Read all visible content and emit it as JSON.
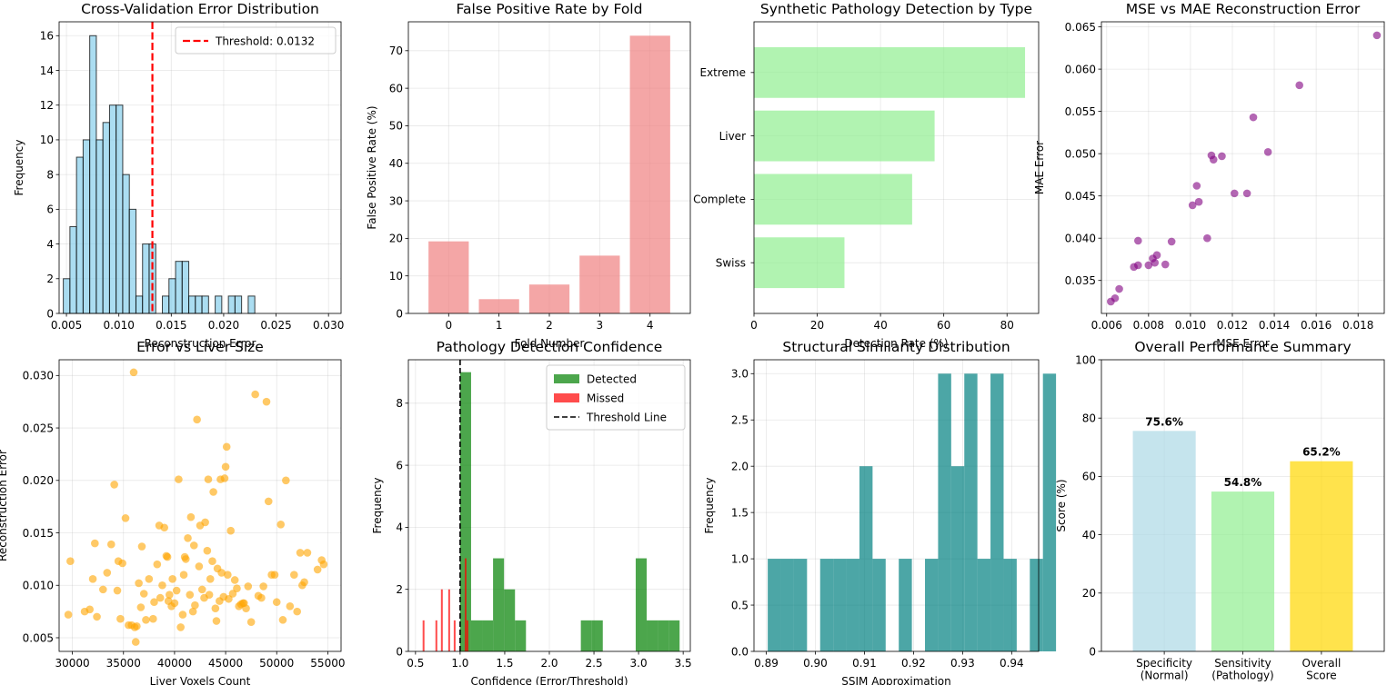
{
  "chart_data": [
    {
      "type": "histogram",
      "title": "Cross-Validation Error Distribution",
      "xlabel": "Reconstruction Error",
      "ylabel": "Frequency",
      "xlim": [
        0.0043,
        0.0312
      ],
      "ylim": [
        0,
        16.8
      ],
      "xticks": [
        0.005,
        0.01,
        0.015,
        0.02,
        0.025,
        0.03
      ],
      "yticks": [
        0,
        2,
        4,
        6,
        8,
        10,
        12,
        14,
        16
      ],
      "bin_start": 0.0047,
      "bin_width": 0.00063,
      "counts": [
        2,
        5,
        9,
        10,
        16,
        10,
        11,
        12,
        12,
        8,
        6,
        1,
        4,
        4,
        0,
        1,
        2,
        3,
        3,
        1,
        1,
        1,
        0,
        1,
        0,
        1,
        1,
        0,
        1
      ],
      "color": "#87ceeb",
      "threshold": {
        "value": 0.0132,
        "label": "Threshold: 0.0132",
        "color": "#ff0000"
      },
      "legend": "top-right",
      "grid": true
    },
    {
      "type": "bar",
      "title": "False Positive Rate by Fold",
      "xlabel": "Fold Number",
      "ylabel": "False Positive Rate (%)",
      "categories": [
        "0",
        "1",
        "2",
        "3",
        "4"
      ],
      "values": [
        19.2,
        3.8,
        7.7,
        15.4,
        74.0
      ],
      "ylim": [
        0,
        77.7
      ],
      "yticks": [
        0,
        10,
        20,
        30,
        40,
        50,
        60,
        70
      ],
      "color": "#f08080",
      "grid": true
    },
    {
      "type": "barh",
      "title": "Synthetic Pathology Detection by Type",
      "xlabel": "Detection Rate (%)",
      "ylabel": "",
      "categories": [
        "Swiss",
        "Complete",
        "Liver",
        "Extreme"
      ],
      "values": [
        28.6,
        50.0,
        57.1,
        85.7
      ],
      "xlim": [
        0,
        90
      ],
      "xticks": [
        0,
        20,
        40,
        60,
        80
      ],
      "color": "#90ee90",
      "grid": true
    },
    {
      "type": "scatter",
      "title": "MSE vs MAE Reconstruction Error",
      "xlabel": "MSE Error",
      "ylabel": "MAE Error",
      "xlim": [
        0.00575,
        0.01925
      ],
      "ylim": [
        0.0311,
        0.0656
      ],
      "xticks": [
        0.006,
        0.008,
        0.01,
        0.012,
        0.014,
        0.016,
        0.018
      ],
      "yticks": [
        0.035,
        0.04,
        0.045,
        0.05,
        0.055,
        0.06,
        0.065
      ],
      "color": "#800080",
      "points": [
        [
          0.0062,
          0.0325
        ],
        [
          0.0064,
          0.0329
        ],
        [
          0.0066,
          0.034
        ],
        [
          0.0073,
          0.0366
        ],
        [
          0.0075,
          0.0368
        ],
        [
          0.0075,
          0.0397
        ],
        [
          0.008,
          0.0368
        ],
        [
          0.0082,
          0.0376
        ],
        [
          0.0083,
          0.0371
        ],
        [
          0.0084,
          0.038
        ],
        [
          0.0088,
          0.0369
        ],
        [
          0.0091,
          0.0396
        ],
        [
          0.0101,
          0.0439
        ],
        [
          0.0103,
          0.0462
        ],
        [
          0.0104,
          0.0443
        ],
        [
          0.0108,
          0.04
        ],
        [
          0.011,
          0.0498
        ],
        [
          0.0111,
          0.0493
        ],
        [
          0.0115,
          0.0497
        ],
        [
          0.0121,
          0.0453
        ],
        [
          0.0127,
          0.0453
        ],
        [
          0.013,
          0.0543
        ],
        [
          0.0137,
          0.0502
        ],
        [
          0.0152,
          0.0581
        ],
        [
          0.0189,
          0.064
        ]
      ],
      "grid": true
    },
    {
      "type": "scatter",
      "title": "Error vs Liver Size",
      "xlabel": "Liver Voxels Count",
      "ylabel": "Reconstruction Error",
      "xlim": [
        28700,
        56300
      ],
      "ylim": [
        0.0037,
        0.0315
      ],
      "xticks": [
        30000,
        35000,
        40000,
        45000,
        50000,
        55000
      ],
      "yticks": [
        0.005,
        0.01,
        0.015,
        0.02,
        0.025,
        0.03
      ],
      "color": "#ffa500",
      "points": [
        [
          29600,
          0.0072
        ],
        [
          29800,
          0.0123
        ],
        [
          31200,
          0.0075
        ],
        [
          31700,
          0.0077
        ],
        [
          32000,
          0.0106
        ],
        [
          32200,
          0.014
        ],
        [
          32400,
          0.007
        ],
        [
          33000,
          0.0096
        ],
        [
          33400,
          0.0112
        ],
        [
          33800,
          0.0139
        ],
        [
          34100,
          0.0196
        ],
        [
          34400,
          0.0095
        ],
        [
          34500,
          0.0123
        ],
        [
          34700,
          0.0068
        ],
        [
          34900,
          0.0121
        ],
        [
          35200,
          0.0164
        ],
        [
          35500,
          0.0062
        ],
        [
          35800,
          0.0062
        ],
        [
          36000,
          0.0303
        ],
        [
          36100,
          0.006
        ],
        [
          36200,
          0.0046
        ],
        [
          36300,
          0.0061
        ],
        [
          36500,
          0.0102
        ],
        [
          36700,
          0.0079
        ],
        [
          36800,
          0.0137
        ],
        [
          37000,
          0.0092
        ],
        [
          37200,
          0.0067
        ],
        [
          37500,
          0.0106
        ],
        [
          37900,
          0.0068
        ],
        [
          38000,
          0.0084
        ],
        [
          38300,
          0.012
        ],
        [
          38500,
          0.0157
        ],
        [
          38600,
          0.0088
        ],
        [
          38800,
          0.01
        ],
        [
          39000,
          0.0155
        ],
        [
          39200,
          0.0128
        ],
        [
          39300,
          0.0127
        ],
        [
          39400,
          0.0085
        ],
        [
          39500,
          0.0091
        ],
        [
          39700,
          0.008
        ],
        [
          39800,
          0.0106
        ],
        [
          40000,
          0.0083
        ],
        [
          40200,
          0.0095
        ],
        [
          40400,
          0.0201
        ],
        [
          40600,
          0.006
        ],
        [
          40800,
          0.0072
        ],
        [
          40900,
          0.011
        ],
        [
          41000,
          0.0127
        ],
        [
          41100,
          0.0125
        ],
        [
          41300,
          0.0145
        ],
        [
          41500,
          0.0091
        ],
        [
          41600,
          0.0165
        ],
        [
          41800,
          0.0075
        ],
        [
          41900,
          0.0138
        ],
        [
          42000,
          0.0081
        ],
        [
          42200,
          0.0258
        ],
        [
          42400,
          0.0118
        ],
        [
          42500,
          0.0157
        ],
        [
          42700,
          0.0096
        ],
        [
          42900,
          0.0088
        ],
        [
          43000,
          0.016
        ],
        [
          43200,
          0.0133
        ],
        [
          43300,
          0.0201
        ],
        [
          43400,
          0.0091
        ],
        [
          43500,
          0.0106
        ],
        [
          43700,
          0.0123
        ],
        [
          43800,
          0.0189
        ],
        [
          44000,
          0.0078
        ],
        [
          44100,
          0.0066
        ],
        [
          44200,
          0.0116
        ],
        [
          44400,
          0.0085
        ],
        [
          44500,
          0.0201
        ],
        [
          44600,
          0.0112
        ],
        [
          44800,
          0.0089
        ],
        [
          44900,
          0.0202
        ],
        [
          45000,
          0.0213
        ],
        [
          45100,
          0.0232
        ],
        [
          45200,
          0.011
        ],
        [
          45300,
          0.0087
        ],
        [
          45500,
          0.0152
        ],
        [
          45700,
          0.0092
        ],
        [
          45900,
          0.0105
        ],
        [
          46100,
          0.0097
        ],
        [
          46300,
          0.008
        ],
        [
          46500,
          0.0082
        ],
        [
          46700,
          0.0083
        ],
        [
          46800,
          0.0083
        ],
        [
          47000,
          0.0078
        ],
        [
          47200,
          0.0099
        ],
        [
          47500,
          0.0065
        ],
        [
          47900,
          0.0282
        ],
        [
          48200,
          0.009
        ],
        [
          48500,
          0.0088
        ],
        [
          48700,
          0.0099
        ],
        [
          49000,
          0.0275
        ],
        [
          49200,
          0.018
        ],
        [
          49500,
          0.011
        ],
        [
          49800,
          0.011
        ],
        [
          50000,
          0.0084
        ],
        [
          50400,
          0.0158
        ],
        [
          50600,
          0.0067
        ],
        [
          50900,
          0.02
        ],
        [
          51300,
          0.008
        ],
        [
          51700,
          0.011
        ],
        [
          52000,
          0.0075
        ],
        [
          52300,
          0.0131
        ],
        [
          52500,
          0.01
        ],
        [
          52700,
          0.0103
        ],
        [
          53000,
          0.0131
        ],
        [
          54000,
          0.0115
        ],
        [
          54400,
          0.0124
        ],
        [
          54600,
          0.012
        ]
      ],
      "grid": true
    },
    {
      "type": "histogram",
      "title": "Pathology Detection Confidence",
      "xlabel": "Confidence (Error/Threshold)",
      "ylabel": "Frequency",
      "xlim": [
        0.42,
        3.58
      ],
      "ylim": [
        0,
        9.4
      ],
      "xticks": [
        0.5,
        1.0,
        1.5,
        2.0,
        2.5,
        3.0,
        3.5
      ],
      "yticks": [
        0,
        2,
        4,
        6,
        8
      ],
      "series": [
        {
          "name": "Detected",
          "color": "#008000",
          "bin_start": 1.0,
          "bin_width": 0.123,
          "counts": [
            9,
            1,
            1,
            3,
            2,
            1,
            0,
            0,
            0,
            0,
            0,
            1,
            1,
            0,
            0,
            0,
            3,
            1,
            1,
            1
          ]
        },
        {
          "name": "Missed",
          "color": "#ff0000",
          "bin_start": 0.58,
          "bin_width": 0.0205,
          "counts": [
            1,
            0,
            0,
            0,
            0,
            0,
            0,
            1,
            0,
            0,
            2,
            0,
            0,
            0,
            2,
            0,
            0,
            1,
            0,
            0,
            0,
            0,
            0,
            3,
            1
          ]
        }
      ],
      "threshold": {
        "value": 1.0,
        "label": "Threshold Line",
        "color": "#000000"
      },
      "legend": "top-right",
      "grid": true
    },
    {
      "type": "histogram",
      "title": "Structural Similarity Distribution",
      "xlabel": "SSIM Approximation",
      "ylabel": "Frequency",
      "xlim": [
        0.8875,
        0.9455
      ],
      "ylim": [
        0,
        3.15
      ],
      "xticks": [
        0.89,
        0.9,
        0.91,
        0.92,
        0.93,
        0.94
      ],
      "yticks": [
        "0.0",
        "0.5",
        "1.0",
        "1.5",
        "2.0",
        "2.5",
        "3.0"
      ],
      "bin_start": 0.8903,
      "bin_width": 0.00267,
      "counts": [
        1,
        1,
        1,
        0,
        1,
        1,
        1,
        2,
        1,
        0,
        1,
        0,
        1,
        3,
        2,
        3,
        1,
        3,
        1,
        0,
        1,
        3
      ],
      "color": "#008080",
      "grid": true
    },
    {
      "type": "bar",
      "title": "Overall Performance Summary",
      "xlabel": "",
      "ylabel": "Score (%)",
      "categories": [
        [
          "Specificity",
          "(Normal)"
        ],
        [
          "Sensitivity",
          "(Pathology)"
        ],
        [
          "Overall",
          "Score"
        ]
      ],
      "values": [
        75.6,
        54.8,
        65.2
      ],
      "data_labels": [
        "75.6%",
        "54.8%",
        "65.2%"
      ],
      "colors": [
        "#add8e6",
        "#90ee90",
        "#ffd700"
      ],
      "ylim": [
        0,
        100
      ],
      "yticks": [
        0,
        20,
        40,
        60,
        80,
        100
      ],
      "grid": true
    }
  ]
}
